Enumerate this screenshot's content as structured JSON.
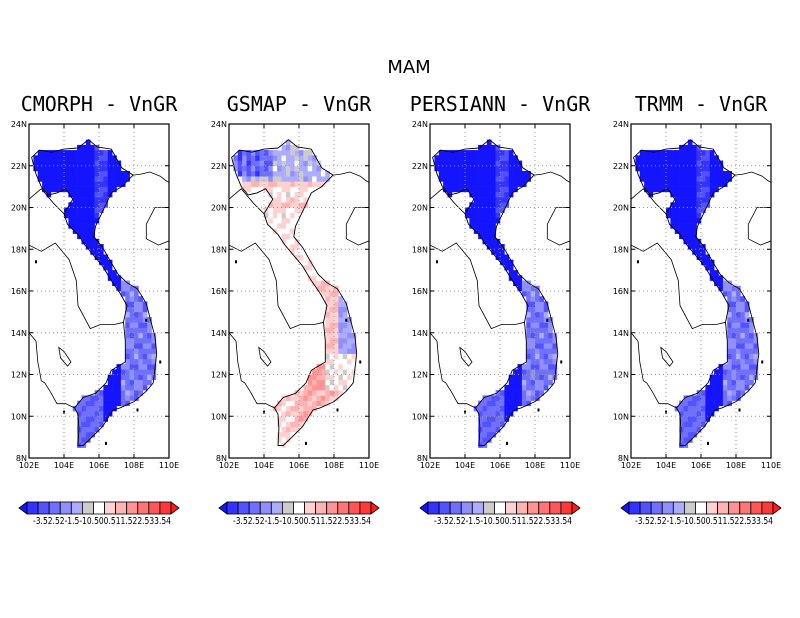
{
  "figure": {
    "title": "MAM"
  },
  "panels": [
    {
      "title": "CMORPH - VnGR",
      "pattern": "neg"
    },
    {
      "title": "GSMAP - VnGR",
      "pattern": "mixed"
    },
    {
      "title": "PERSIANN - VnGR",
      "pattern": "neg"
    },
    {
      "title": "TRMM - VnGR",
      "pattern": "neg"
    }
  ],
  "axes": {
    "x_ticks": [
      "102E",
      "104E",
      "106E",
      "108E",
      "110E"
    ],
    "y_ticks": [
      "8N",
      "10N",
      "12N",
      "14N",
      "16N",
      "18N",
      "20N",
      "22N",
      "24N"
    ],
    "lon_range": [
      102,
      110
    ],
    "lat_range": [
      8,
      24
    ],
    "grid": true
  },
  "colorbar": {
    "levels": [
      "-3",
      "-2.5",
      "-2",
      "-1.5",
      "-1",
      "-0.5",
      "0",
      "0.5",
      "1",
      "1.5",
      "2",
      "2.5",
      "3",
      "3.5"
    ],
    "label_text": "-3.52.52-1.5-10.500.511.522.533.54",
    "colors": [
      "#1414ff",
      "#3333ff",
      "#5252ff",
      "#7070ff",
      "#8f8fff",
      "#adadff",
      "#cccccc",
      "#ffffff",
      "#ffd1d1",
      "#ffb3b3",
      "#ff9494",
      "#ff7575",
      "#ff5757",
      "#ff3838",
      "#ff1a1a"
    ]
  }
}
